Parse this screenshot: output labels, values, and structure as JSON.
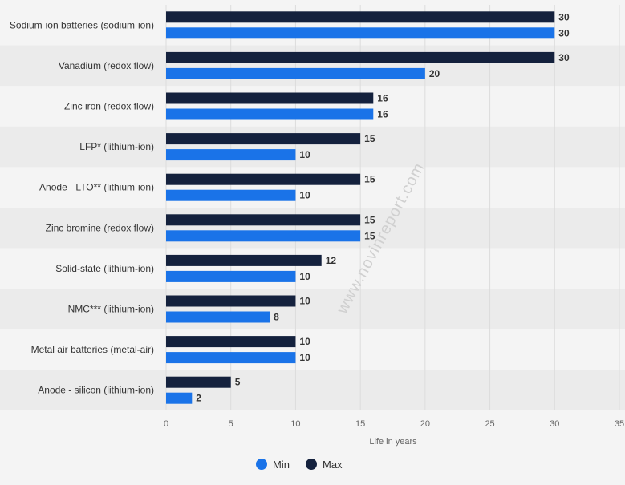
{
  "watermark": "www.novinreport.com",
  "chart_data": {
    "type": "bar",
    "orientation": "horizontal",
    "categories": [
      "Sodium-ion batteries (sodium-ion)",
      "Vanadium (redox flow)",
      "Zinc iron (redox flow)",
      "LFP* (lithium-ion)",
      "Anode - LTO** (lithium-ion)",
      "Zinc bromine (redox flow)",
      "Solid-state (lithium-ion)",
      "NMC*** (lithium-ion)",
      "Metal air batteries (metal-air)",
      "Anode - silicon (lithium-ion)"
    ],
    "series": [
      {
        "name": "Max",
        "color": "#14213d",
        "values": [
          30,
          30,
          16,
          15,
          15,
          15,
          12,
          10,
          10,
          5
        ]
      },
      {
        "name": "Min",
        "color": "#1a73e8",
        "values": [
          30,
          20,
          16,
          10,
          10,
          15,
          10,
          8,
          10,
          2
        ]
      }
    ],
    "xlabel": "Life in years",
    "xlim": [
      0,
      35
    ],
    "xticks": [
      0,
      5,
      10,
      15,
      20,
      25,
      30,
      35
    ],
    "grid": true,
    "legend": {
      "position": "bottom",
      "order": [
        "Min",
        "Max"
      ]
    },
    "data_labels": true
  }
}
